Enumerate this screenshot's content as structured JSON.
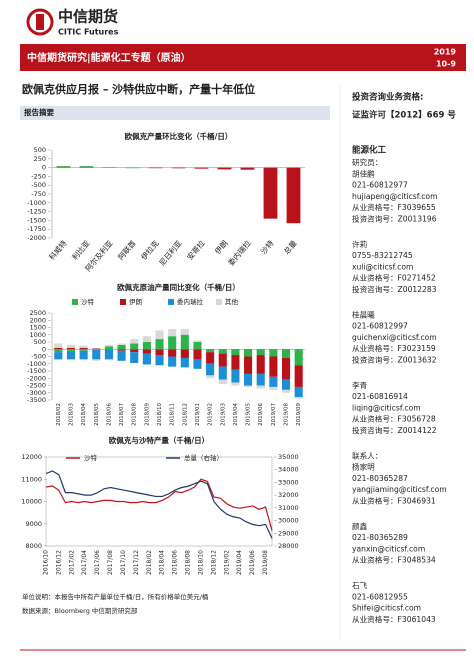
{
  "header": {
    "logo_cn": "中信期货",
    "logo_en": "CITIC Futures",
    "banner": "中信期货研究|能源化工专题（原油）",
    "year": "2019",
    "date": "10-9"
  },
  "title": "欧佩克供应月报 – 沙特供应中断，产量十年低位",
  "section": "报告摘要",
  "sidebar": {
    "qualification": "投资咨询业务资格:",
    "license": "证监许可【2012】669 号",
    "team": "能源化工",
    "blocks": [
      [
        "研究员：",
        "胡佳鹏",
        "021-60812977",
        "hujiapeng@citicsf.com",
        "从业资格号：F3039655",
        "投资咨询号：Z0013196"
      ],
      [
        "许莉",
        "0755-83212745",
        "xuli@citicsf.com",
        "从业资格号：F0271452",
        "投资咨询号：Z0012283"
      ],
      [
        "桂晨曦",
        "021-60812997",
        "guichenxi@citicsf.com",
        "从业资格号：F3023159",
        "投资咨询号：Z0013632"
      ],
      [
        "李青",
        "021-60816914",
        "liqing@citicsf.com",
        "从业资格号：F3056728",
        "投资咨询号：Z0014122"
      ],
      [
        "联系人：",
        "杨家明",
        "021-80365287",
        "yangjiaming@citicsf.com",
        "从业资格号：F3046931"
      ],
      [
        "颜鑫",
        "021-80365289",
        "yanxin@citicsf.com",
        "从业资格号：F3048534"
      ],
      [
        "石飞",
        "021-60812955",
        "Shifei@citicsf.com",
        "从业资格号：F3061043"
      ]
    ]
  },
  "chart_data": [
    {
      "type": "bar",
      "title": "欧佩克产量环比变化（千桶/日）",
      "categories": [
        "科威特",
        "利比亚",
        "阿尔及利亚",
        "阿联酋",
        "伊拉克",
        "尼日利亚",
        "安哥拉",
        "伊朗",
        "委内瑞拉",
        "沙特",
        "总量"
      ],
      "values": [
        40,
        40,
        5,
        0,
        -5,
        -20,
        -30,
        -50,
        -60,
        -1450,
        -1580
      ],
      "colors": [
        "#2e9e4a",
        "#2e9e4a",
        "#2e9e4a",
        "#2e9e4a",
        "#b8121b",
        "#b8121b",
        "#b8121b",
        "#b8121b",
        "#b8121b",
        "#b8121b",
        "#b8121b"
      ],
      "ylim": [
        -2000,
        500
      ],
      "yticks": [
        500,
        250,
        0,
        -250,
        -500,
        -750,
        -1000,
        -1250,
        -1500,
        -1750,
        -2000
      ]
    },
    {
      "type": "stacked-bar",
      "title": "欧佩克原油产量同比变化（千桶/日）",
      "categories": [
        "2018/02",
        "2018/03",
        "2018/04",
        "2018/05",
        "2018/06",
        "2018/07",
        "2018/08",
        "2018/09",
        "2018/10",
        "2018/11",
        "2018/12",
        "2019/01",
        "2019/02",
        "2019/03",
        "2019/04",
        "2019/05",
        "2019/06",
        "2019/07",
        "2019/08",
        "2019/09"
      ],
      "series": [
        {
          "name": "沙特",
          "color": "#2eb34a",
          "values": [
            -200,
            -150,
            -100,
            -50,
            200,
            300,
            400,
            500,
            700,
            900,
            1000,
            500,
            -200,
            -300,
            -400,
            -500,
            -400,
            -500,
            -600,
            -1100
          ]
        },
        {
          "name": "伊朗",
          "color": "#b8121b",
          "values": [
            100,
            100,
            100,
            50,
            0,
            -100,
            -200,
            -300,
            -400,
            -500,
            -600,
            -700,
            -800,
            -900,
            -1000,
            -1200,
            -1300,
            -1400,
            -1500,
            -1500
          ]
        },
        {
          "name": "委内瑞拉",
          "color": "#1c8fd6",
          "values": [
            -500,
            -550,
            -600,
            -650,
            -700,
            -700,
            -750,
            -750,
            -700,
            -700,
            -650,
            -650,
            -800,
            -900,
            -900,
            -800,
            -800,
            -700,
            -700,
            -700
          ]
        },
        {
          "name": "其他",
          "color": "#d9d9d9",
          "values": [
            300,
            200,
            150,
            -100,
            100,
            100,
            300,
            400,
            600,
            500,
            400,
            100,
            -200,
            -300,
            -200,
            -100,
            -200,
            -200,
            -200,
            -100
          ]
        }
      ],
      "ylim": [
        -3500,
        2500
      ],
      "yticks": [
        2500,
        2000,
        1500,
        1000,
        500,
        0,
        -500,
        -1000,
        -1500,
        -2000,
        -2500,
        -3000,
        -3500
      ]
    },
    {
      "type": "line",
      "title": "欧佩克与沙特产量（千桶/日）",
      "categories": [
        "2016/10",
        null,
        "2016/12",
        null,
        "2017/02",
        null,
        "2017/04",
        null,
        "2017/06",
        null,
        "2017/08",
        null,
        "2017/10",
        null,
        "2017/12",
        null,
        "2018/02",
        null,
        "2018/04",
        null,
        "2018/06",
        null,
        "2018/08",
        null,
        "2018/10",
        null,
        "2018/12",
        null,
        "2019/02",
        null,
        "2019/04",
        null,
        "2019/06",
        null,
        "2019/08",
        null
      ],
      "series": [
        {
          "name": "沙特",
          "color": "#c0141a",
          "values": [
            10650,
            10700,
            10500,
            9950,
            10000,
            9950,
            10000,
            9950,
            10000,
            10050,
            10050,
            10000,
            10000,
            9950,
            9950,
            10000,
            9950,
            9950,
            10050,
            10200,
            10450,
            10400,
            10500,
            10650,
            11000,
            10900,
            10200,
            10150,
            9900,
            9750,
            9700,
            9750,
            9800,
            9650,
            9750,
            8700
          ]
        },
        {
          "name": "总量（右轴）",
          "color": "#1f3a6e",
          "axis": "y2",
          "values": [
            33700,
            33900,
            33600,
            32200,
            32200,
            32100,
            32000,
            32000,
            32200,
            32500,
            32600,
            32500,
            32400,
            32300,
            32200,
            32100,
            32000,
            31900,
            31900,
            32100,
            32400,
            32600,
            32700,
            32900,
            33100,
            32900,
            31500,
            30900,
            30500,
            30300,
            30200,
            29900,
            29700,
            29600,
            29700,
            28600
          ]
        }
      ],
      "ylim": [
        8000,
        12000
      ],
      "yticks": [
        12000,
        11000,
        10000,
        9000,
        8000
      ],
      "y2lim": [
        28000,
        35000
      ],
      "y2ticks": [
        35000,
        34000,
        33000,
        32000,
        31000,
        30000,
        29000,
        28000
      ]
    }
  ],
  "notes": [
    "单位说明：本报告中所有产量单位千桶/日，所有价格单位美元/桶",
    "数据来源：Bloomberg 中信期货研究部"
  ]
}
